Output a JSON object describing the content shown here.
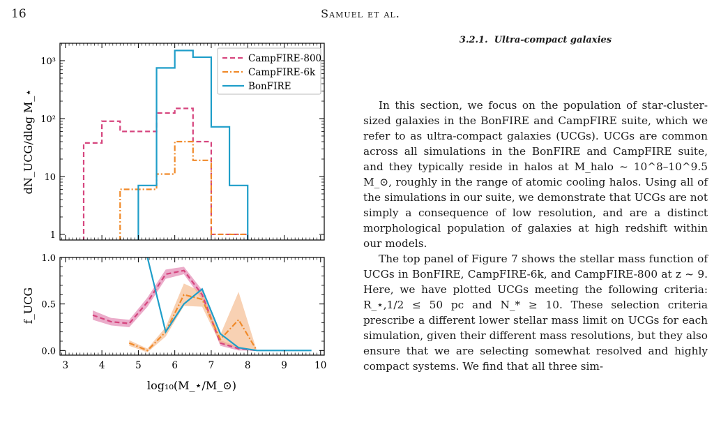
{
  "header": {
    "page_number": "16",
    "running_title": "Samuel et al."
  },
  "section": {
    "number": "3.2.1.",
    "title": "Ultra-compact galaxies"
  },
  "paragraphs": [
    "In this section, we focus on the population of star-cluster-sized galaxies in the BonFIRE and CampFIRE suite, which we refer to as ultra-compact galaxies (UCGs). UCGs are common across all simulations in the BonFIRE and CampFIRE suite, and they typically reside in halos at M_halo ~ 10^8–10^9.5 M_⊙, roughly in the range of atomic cooling halos. Using all of the simulations in our suite, we demonstrate that UCGs are not simply a consequence of low resolution, and are a distinct morphological population of galaxies at high redshift within our models.",
    "The top panel of Figure 7 shows the stellar mass function of UCGs in BonFIRE, CampFIRE-6k, and CampFIRE-800 at z ~ 9. Here, we have plotted UCGs meeting the following criteria: R_⋆,1/2 ≤ 50 pc and N_* ≥ 10. These selection criteria prescribe a different lower stellar mass limit on UCGs for each simulation, given their different mass resolutions, but they also ensure that we are selecting somewhat resolved and highly compact systems. We find that all three sim-"
  ],
  "figure_ref": "7",
  "colors": {
    "campfire800": "#d6457e",
    "campfire6k": "#f08a2a",
    "bonfire": "#1f9ec9",
    "campfire800_band": "#e07fae",
    "campfire6k_band": "#f5b98a"
  },
  "chart_data": [
    {
      "type": "line",
      "panel": "top",
      "subtype": "step-histogram",
      "ylabel": "dN_UCG/dlog M_⋆",
      "yscale": "log",
      "ylim": [
        0.8,
        2000
      ],
      "xlim": [
        2.85,
        10.1
      ],
      "ytick_labels": [
        "1",
        "10",
        "10²",
        "10³"
      ],
      "legend_placement": "top-right",
      "series": [
        {
          "name": "CampFIRE-800",
          "style": "dashed",
          "bin_edges": [
            3.5,
            4.0,
            4.5,
            5.0,
            5.5,
            6.0,
            6.5,
            7.0,
            7.5,
            8.0
          ],
          "values": [
            38,
            90,
            60,
            60,
            125,
            150,
            40,
            1,
            1
          ]
        },
        {
          "name": "CampFIRE-6k",
          "style": "dashdot",
          "bin_edges": [
            4.5,
            5.0,
            5.5,
            6.0,
            6.5,
            7.0,
            7.5,
            8.0
          ],
          "values": [
            6,
            6,
            11,
            40,
            19,
            1,
            1
          ]
        },
        {
          "name": "BonFIRE",
          "style": "solid",
          "bin_edges": [
            5.0,
            5.5,
            6.0,
            6.5,
            7.0,
            7.5,
            8.0
          ],
          "values": [
            7,
            750,
            1500,
            1150,
            72,
            7
          ]
        }
      ]
    },
    {
      "type": "line",
      "panel": "bottom",
      "ylabel": "f_UCG",
      "xlabel": "log₁₀(M_⋆/M_⊙)",
      "ylim": [
        -0.05,
        1.0
      ],
      "xlim": [
        2.85,
        10.1
      ],
      "xtick_labels": [
        "3",
        "4",
        "5",
        "6",
        "7",
        "8",
        "9",
        "10"
      ],
      "ytick_labels": [
        "0.0",
        "0.5",
        "1.0"
      ],
      "series": [
        {
          "name": "CampFIRE-800",
          "style": "dashed",
          "x": [
            3.75,
            4.25,
            4.75,
            5.25,
            5.75,
            6.25,
            6.75,
            7.25,
            7.75,
            8.25
          ],
          "y": [
            0.38,
            0.31,
            0.29,
            0.52,
            0.82,
            0.86,
            0.6,
            0.08,
            0.02,
            0.0
          ],
          "band_halfwidth": [
            0.05,
            0.04,
            0.04,
            0.05,
            0.05,
            0.04,
            0.05,
            0.03,
            0.02,
            0.0
          ]
        },
        {
          "name": "CampFIRE-6k",
          "style": "dashdot",
          "x": [
            4.75,
            5.25,
            5.75,
            6.25,
            6.75,
            7.25,
            7.75,
            8.25
          ],
          "y": [
            0.08,
            0.0,
            0.2,
            0.6,
            0.55,
            0.12,
            0.33,
            0.0
          ],
          "band_halfwidth": [
            0.03,
            0.02,
            0.05,
            0.12,
            0.08,
            0.05,
            0.3,
            0.0
          ]
        },
        {
          "name": "BonFIRE",
          "style": "solid",
          "x": [
            5.25,
            5.75,
            6.25,
            6.75,
            7.25,
            7.75,
            8.25,
            8.75,
            9.25,
            9.75
          ],
          "y": [
            1.0,
            0.2,
            0.5,
            0.66,
            0.18,
            0.03,
            0.0,
            0.0,
            0.0,
            0.0
          ]
        }
      ]
    }
  ]
}
